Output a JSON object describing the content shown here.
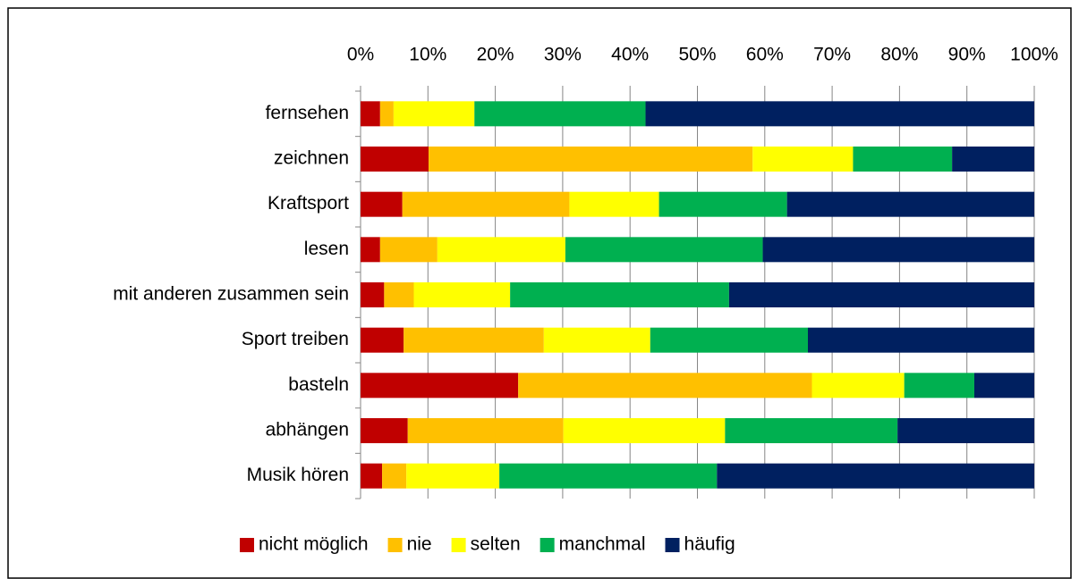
{
  "chart_data": {
    "type": "stacked-bar-horizontal",
    "categories": [
      "fernsehen",
      "zeichnen",
      "Kraftsport",
      "lesen",
      "mit anderen zusammen sein",
      "Sport treiben",
      "basteln",
      "abhängen",
      "Musik hören"
    ],
    "series": [
      {
        "name": "nicht möglich",
        "color": "#C00000",
        "values": [
          2.9,
          10.1,
          6.2,
          2.9,
          3.5,
          6.4,
          23.4,
          7.0,
          3.2
        ]
      },
      {
        "name": "nie",
        "color": "#FFC000",
        "values": [
          2.0,
          48.1,
          24.8,
          8.5,
          4.4,
          20.8,
          43.6,
          23.1,
          3.6
        ]
      },
      {
        "name": "selten",
        "color": "#FFFF00",
        "values": [
          12.0,
          14.9,
          13.3,
          19.0,
          14.3,
          15.8,
          13.7,
          24.0,
          13.8
        ]
      },
      {
        "name": "manchmal",
        "color": "#00B050",
        "values": [
          25.4,
          14.7,
          19.0,
          29.3,
          32.5,
          23.4,
          10.4,
          25.6,
          32.3
        ]
      },
      {
        "name": "häufig",
        "color": "#002060",
        "values": [
          57.7,
          12.2,
          36.7,
          40.3,
          45.3,
          33.6,
          8.9,
          20.3,
          47.1
        ]
      }
    ],
    "xlim": [
      0,
      100
    ],
    "xticks": [
      {
        "value": 0,
        "label": "0%"
      },
      {
        "value": 10,
        "label": "10%"
      },
      {
        "value": 20,
        "label": "20%"
      },
      {
        "value": 30,
        "label": "30%"
      },
      {
        "value": 40,
        "label": "40%"
      },
      {
        "value": 50,
        "label": "50%"
      },
      {
        "value": 60,
        "label": "60%"
      },
      {
        "value": 70,
        "label": "70%"
      },
      {
        "value": 80,
        "label": "80%"
      },
      {
        "value": 90,
        "label": "90%"
      },
      {
        "value": 100,
        "label": "100%"
      }
    ],
    "grid": true,
    "legend": "bottom"
  }
}
